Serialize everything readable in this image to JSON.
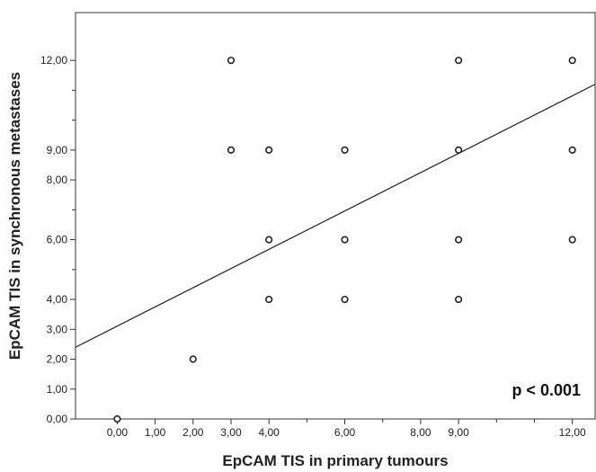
{
  "chart_data": {
    "type": "scatter",
    "title": "",
    "xlabel": "EpCAM TIS in primary tumours",
    "ylabel": "EpCAM TIS in synchronous metastases",
    "xlim": [
      -1.1,
      12.6
    ],
    "ylim": [
      0,
      13.6
    ],
    "x_ticks": [
      {
        "value": 0,
        "label": "0,00"
      },
      {
        "value": 1,
        "label": "1,00"
      },
      {
        "value": 2,
        "label": "2,00"
      },
      {
        "value": 3,
        "label": "3,00"
      },
      {
        "value": 4,
        "label": "4,00"
      },
      {
        "value": 6,
        "label": "6,00"
      },
      {
        "value": 8,
        "label": "8,00"
      },
      {
        "value": 9,
        "label": "9,00"
      },
      {
        "value": 12,
        "label": "12,00"
      }
    ],
    "x_minor_ticks": [
      5,
      7,
      10,
      11
    ],
    "y_ticks": [
      {
        "value": 0,
        "label": "0,00"
      },
      {
        "value": 1,
        "label": "1,00"
      },
      {
        "value": 2,
        "label": "2,00"
      },
      {
        "value": 3,
        "label": "3,00"
      },
      {
        "value": 4,
        "label": "4,00"
      },
      {
        "value": 6,
        "label": "6,00"
      },
      {
        "value": 8,
        "label": "8,00"
      },
      {
        "value": 9,
        "label": "9,00"
      },
      {
        "value": 12,
        "label": "12,00"
      }
    ],
    "y_minor_ticks": [
      5,
      7,
      10,
      11
    ],
    "points": [
      {
        "x": 0,
        "y": 0
      },
      {
        "x": 2,
        "y": 2
      },
      {
        "x": 3,
        "y": 12
      },
      {
        "x": 3,
        "y": 9
      },
      {
        "x": 4,
        "y": 9
      },
      {
        "x": 4,
        "y": 6
      },
      {
        "x": 4,
        "y": 4
      },
      {
        "x": 6,
        "y": 9
      },
      {
        "x": 6,
        "y": 6
      },
      {
        "x": 6,
        "y": 4
      },
      {
        "x": 9,
        "y": 12
      },
      {
        "x": 9,
        "y": 9
      },
      {
        "x": 9,
        "y": 6
      },
      {
        "x": 9,
        "y": 4
      },
      {
        "x": 12,
        "y": 12
      },
      {
        "x": 12,
        "y": 9
      },
      {
        "x": 12,
        "y": 6
      }
    ],
    "fit_line": {
      "x1": -1.1,
      "y1": 2.4,
      "x2": 12.6,
      "y2": 11.2
    },
    "annotation": "p < 0.001",
    "grid": false,
    "legend": "none"
  }
}
